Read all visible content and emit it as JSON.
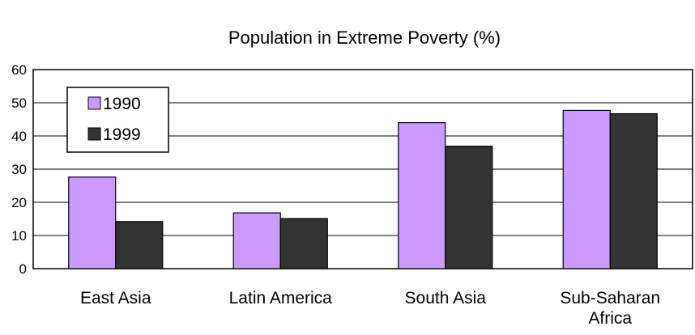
{
  "chart_data": {
    "type": "bar",
    "title": "Population in Extreme Poverty (%)",
    "xlabel": "",
    "ylabel": "",
    "categories": [
      [
        "East Asia"
      ],
      [
        "Latin America"
      ],
      [
        "South Asia"
      ],
      [
        "Sub-Saharan",
        "Africa"
      ]
    ],
    "series": [
      {
        "name": "1990",
        "color": "#cc99ff",
        "values": [
          27.6,
          16.8,
          44.0,
          47.7
        ]
      },
      {
        "name": "1999",
        "color": "#333333",
        "values": [
          14.2,
          15.1,
          36.9,
          46.7
        ]
      }
    ],
    "ylim": [
      0,
      60
    ],
    "yticks": [
      "0",
      "10",
      "20",
      "30",
      "40",
      "50",
      "60"
    ],
    "grid": true,
    "legend": "top-left"
  }
}
